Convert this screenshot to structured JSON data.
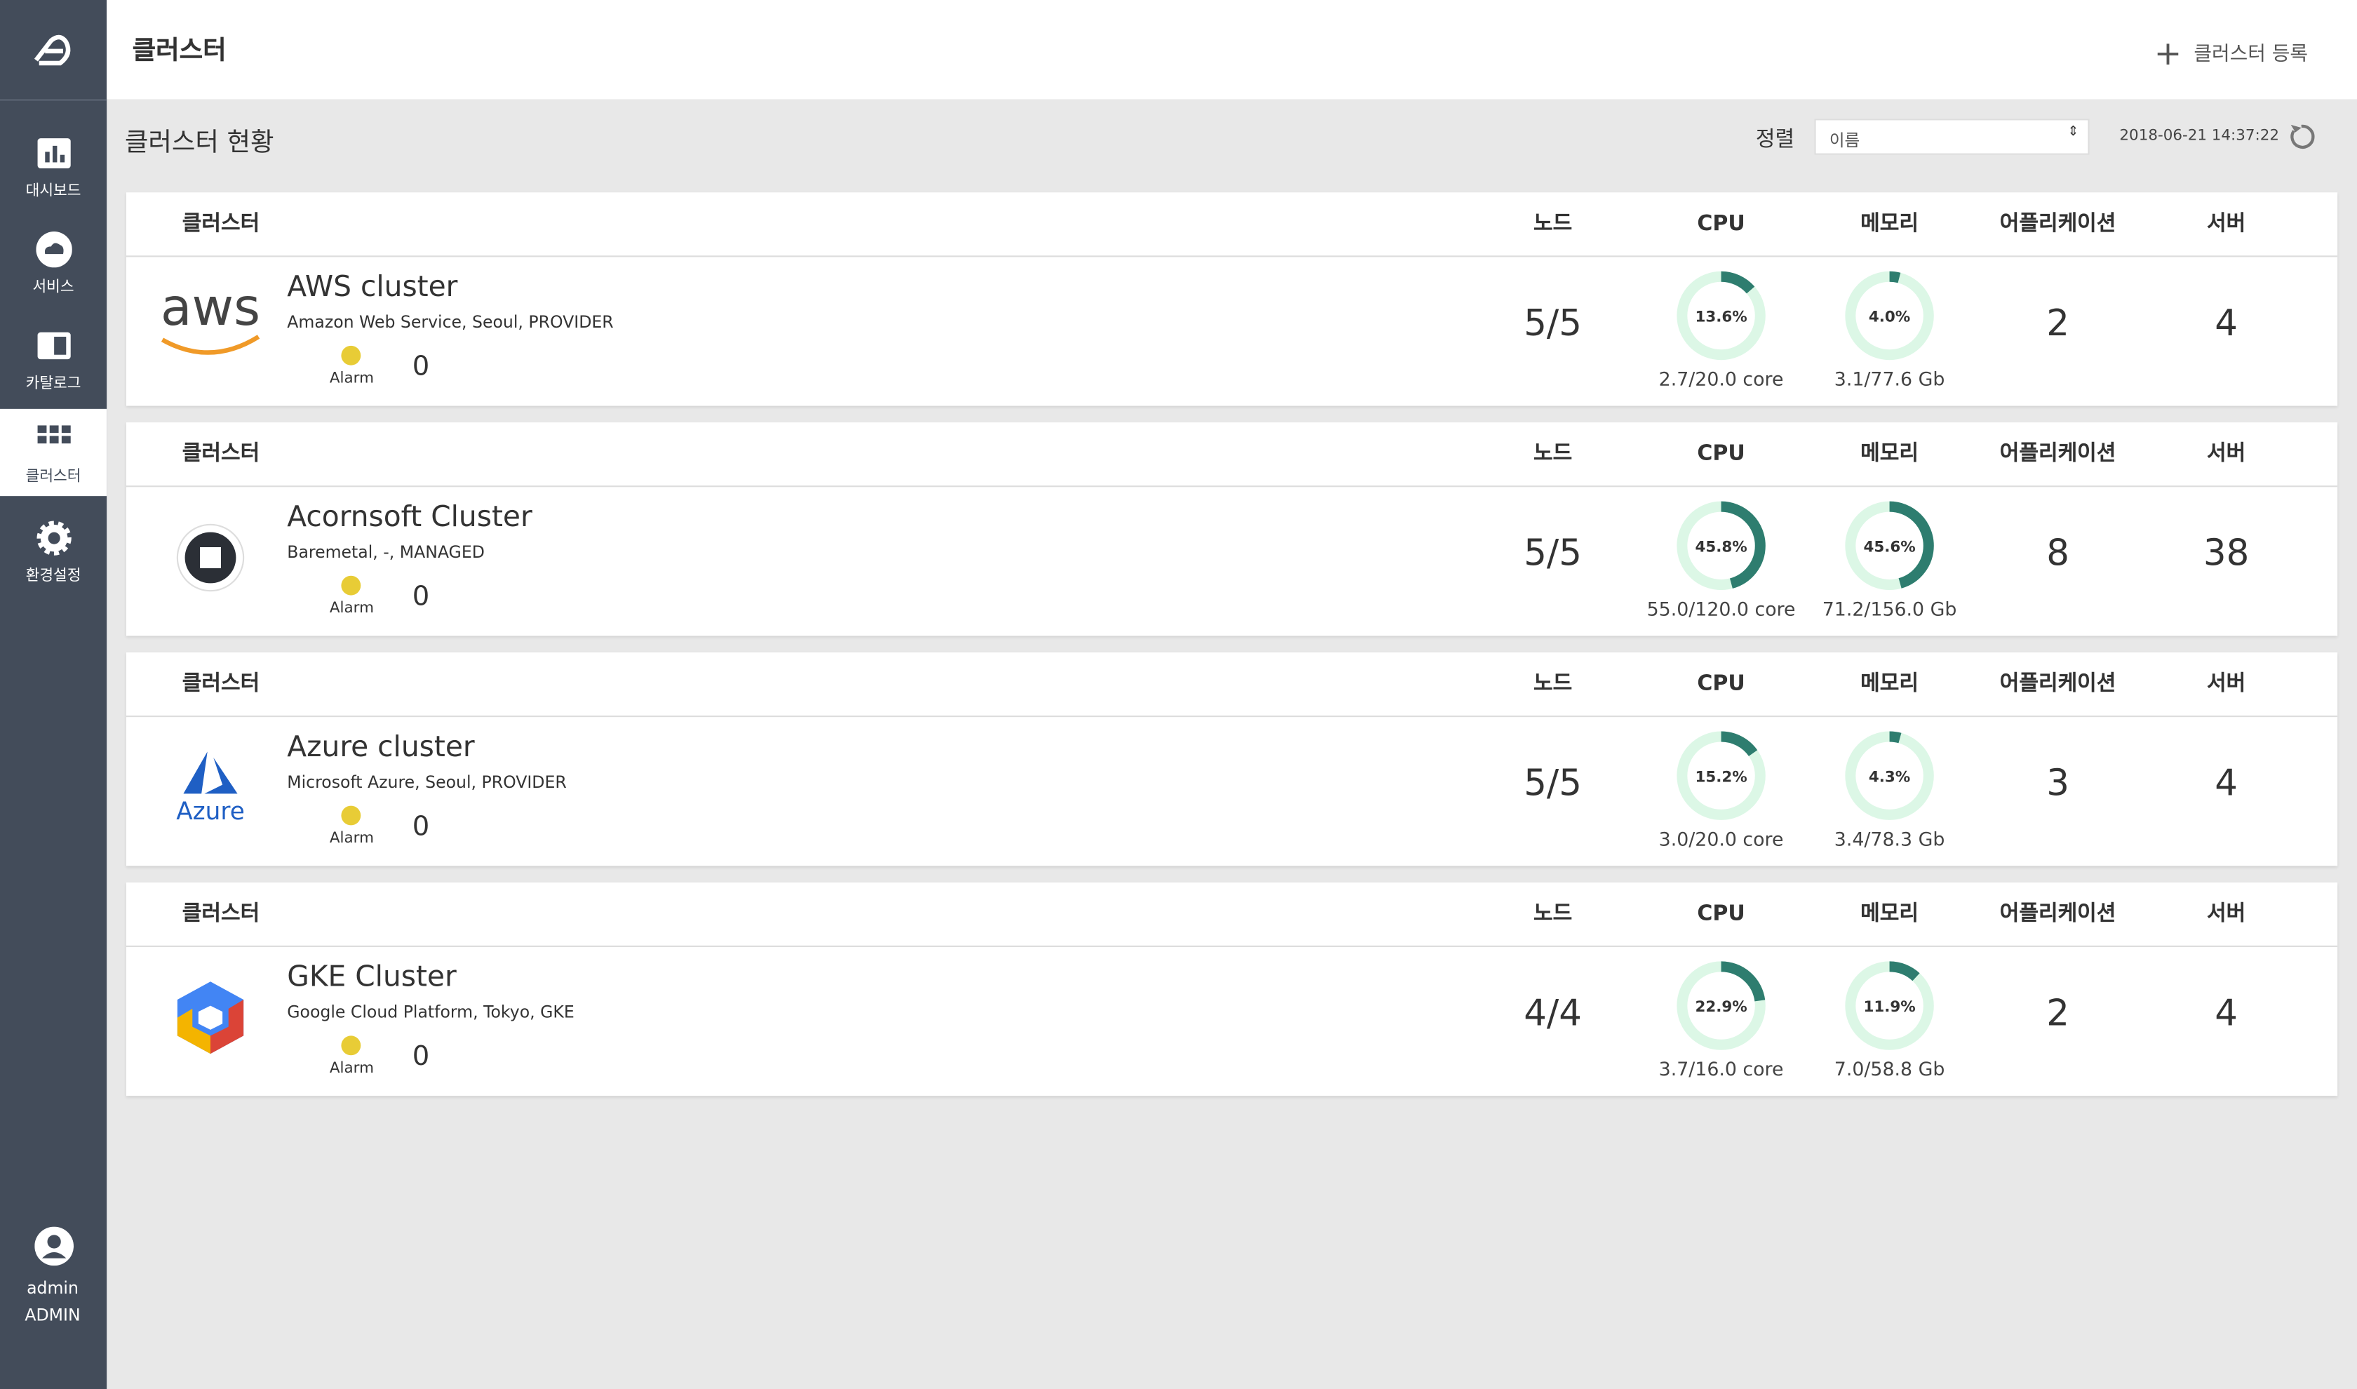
{
  "sidebar": {
    "items": [
      {
        "label": "대시보드"
      },
      {
        "label": "서비스"
      },
      {
        "label": "카탈로그"
      },
      {
        "label": "클러스터"
      },
      {
        "label": "환경설정"
      }
    ],
    "user": {
      "name": "admin",
      "role": "ADMIN"
    }
  },
  "header": {
    "title": "클러스터",
    "action": "클러스터 등록"
  },
  "toolbar": {
    "title": "클러스터 현황",
    "sort_label": "정렬",
    "sort_value": "이름",
    "timestamp": "2018-06-21 14:37:22"
  },
  "columns": {
    "cluster": "클러스터",
    "nodes": "노드",
    "cpu": "CPU",
    "memory": "메모리",
    "apps": "어플리케이션",
    "servers": "서버"
  },
  "clusters": [
    {
      "logo": "aws",
      "name": "AWS cluster",
      "description": "Amazon Web Service, Seoul, PROVIDER",
      "alarm_label": "Alarm",
      "alarms": 0,
      "nodes": "5/5",
      "cpu": {
        "percent": 13.6,
        "label": "13.6%",
        "usage": "2.7/20.0 core"
      },
      "memory": {
        "percent": 4.0,
        "label": "4.0%",
        "usage": "3.1/77.6 Gb"
      },
      "apps": 2,
      "servers": 4
    },
    {
      "name": "Acornsoft Cluster",
      "description": "Baremetal, -, MANAGED",
      "alarm_label": "Alarm",
      "alarms": 0,
      "nodes": "5/5",
      "cpu": {
        "percent": 45.8,
        "label": "45.8%",
        "usage": "55.0/120.0 core"
      },
      "memory": {
        "percent": 45.6,
        "label": "45.6%",
        "usage": "71.2/156.0 Gb"
      },
      "apps": 8,
      "servers": 38
    },
    {
      "logo": "Azure",
      "name": "Azure cluster",
      "description": "Microsoft Azure, Seoul, PROVIDER",
      "alarm_label": "Alarm",
      "alarms": 0,
      "nodes": "5/5",
      "cpu": {
        "percent": 15.2,
        "label": "15.2%",
        "usage": "3.0/20.0 core"
      },
      "memory": {
        "percent": 4.3,
        "label": "4.3%",
        "usage": "3.4/78.3 Gb"
      },
      "apps": 3,
      "servers": 4
    },
    {
      "name": "GKE Cluster",
      "description": "Google Cloud Platform, Tokyo, GKE",
      "alarm_label": "Alarm",
      "alarms": 0,
      "nodes": "4/4",
      "cpu": {
        "percent": 22.9,
        "label": "22.9%",
        "usage": "3.7/16.0 core"
      },
      "memory": {
        "percent": 11.9,
        "label": "11.9%",
        "usage": "7.0/58.8 Gb"
      },
      "apps": 2,
      "servers": 4
    }
  ]
}
